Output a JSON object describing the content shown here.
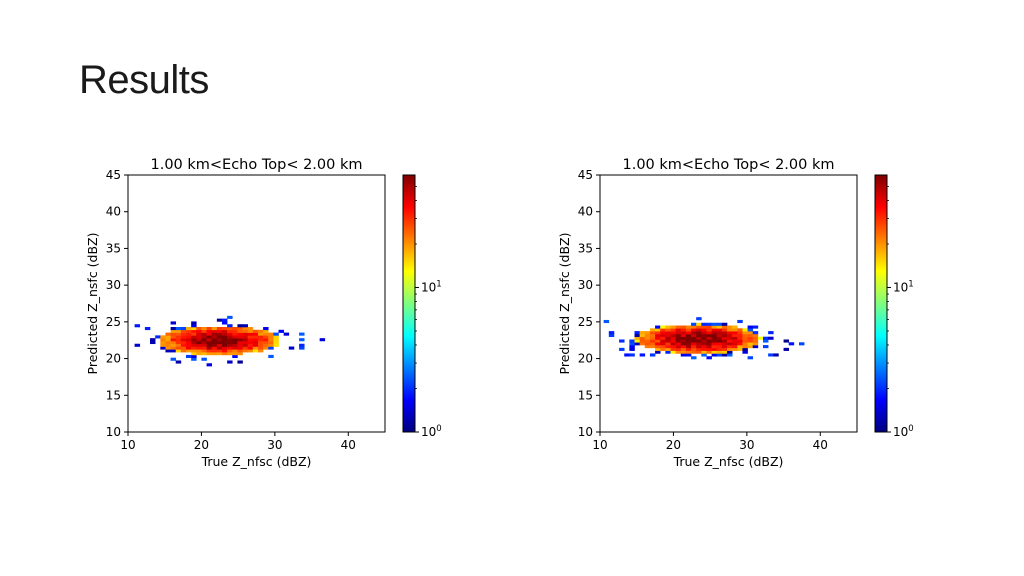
{
  "slide": {
    "title": "Results"
  },
  "colormap": [
    "#00007f",
    "#0000ff",
    "#007fff",
    "#00ffff",
    "#7fff7f",
    "#ffff00",
    "#ff7f00",
    "#ff0000",
    "#7f0000"
  ],
  "chart_data": [
    {
      "type": "heatmap",
      "title": "1.00 km<Echo Top<  2.00 km",
      "xlabel": "True Z_nfsc (dBZ)",
      "ylabel": "Predicted Z_nsfc (dBZ)",
      "xlim": [
        10,
        45
      ],
      "ylim": [
        10,
        45
      ],
      "xticks": [
        "10",
        "20",
        "30",
        "40"
      ],
      "yticks": [
        "10",
        "15",
        "20",
        "25",
        "30",
        "35",
        "40",
        "45"
      ],
      "colorbar": {
        "scale": "log",
        "range": [
          1,
          60
        ],
        "ticks": [
          "10^0",
          "10^1"
        ]
      },
      "distribution": {
        "x_center": 22,
        "y_center": 22.3,
        "x_range": [
          10.2,
          37
        ],
        "y_range": [
          18.6,
          26.2
        ],
        "peak_count": 60
      }
    },
    {
      "type": "heatmap",
      "title": "1.00 km<Echo Top<  2.00 km",
      "xlabel": "True Z_nfsc (dBZ)",
      "ylabel": "Predicted Z_nsfc (dBZ)",
      "xlim": [
        10,
        45
      ],
      "ylim": [
        10,
        45
      ],
      "xticks": [
        "10",
        "20",
        "30",
        "40"
      ],
      "yticks": [
        "10",
        "15",
        "20",
        "25",
        "30",
        "35",
        "40",
        "45"
      ],
      "colorbar": {
        "scale": "log",
        "range": [
          1,
          60
        ],
        "ticks": [
          "10^0",
          "10^1"
        ]
      },
      "distribution": {
        "x_center": 23,
        "y_center": 22.5,
        "x_range": [
          10.5,
          38
        ],
        "y_range": [
          18.8,
          26.5
        ],
        "peak_count": 60
      }
    }
  ]
}
